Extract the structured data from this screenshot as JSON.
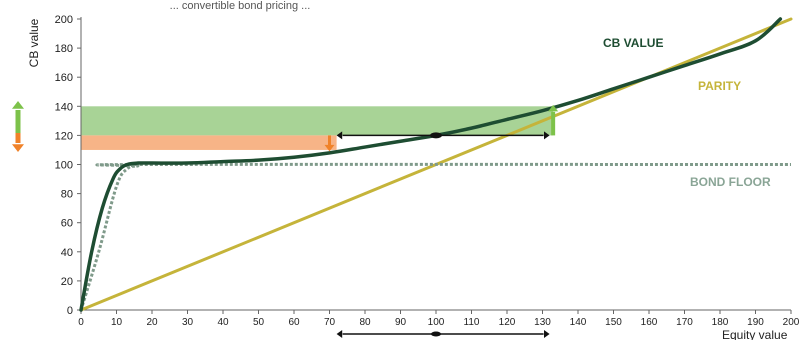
{
  "chart_data": {
    "type": "line",
    "ylabel": "CB value",
    "xlabel": "Equity value",
    "title_fragment": "... convertible bond pricing ...",
    "xlim": [
      0,
      200
    ],
    "ylim": [
      0,
      200
    ],
    "xticks": [
      0,
      10,
      20,
      30,
      40,
      50,
      60,
      70,
      80,
      90,
      100,
      110,
      120,
      130,
      140,
      150,
      160,
      170,
      180,
      190,
      200
    ],
    "yticks": [
      0,
      20,
      40,
      60,
      80,
      100,
      120,
      140,
      160,
      180,
      200
    ],
    "grid": false,
    "series": [
      {
        "name": "CB VALUE",
        "color": "#1e4d32",
        "x": [
          0,
          3,
          6,
          9,
          11,
          13,
          16,
          20,
          30,
          40,
          50,
          60,
          70,
          80,
          90,
          100,
          110,
          120,
          130,
          140,
          150,
          160,
          170,
          180,
          190,
          197
        ],
        "y": [
          0,
          40,
          70,
          90,
          97,
          100,
          101,
          101,
          101,
          102,
          103,
          105,
          108,
          112,
          116,
          120,
          125,
          131,
          137,
          144,
          152,
          160,
          168,
          176,
          185,
          200
        ]
      },
      {
        "name": "PARITY",
        "color": "#c5b43a",
        "x": [
          0,
          200
        ],
        "y": [
          0,
          200
        ]
      },
      {
        "name": "BOND FLOOR",
        "color": "#7f9a8a",
        "dashed": true,
        "x": [
          0,
          5,
          10,
          13,
          16,
          20,
          200
        ],
        "y": [
          0,
          40,
          85,
          97,
          99,
          100,
          100
        ]
      }
    ],
    "bands": [
      {
        "name": "upside",
        "color": "#a8d396",
        "x": [
          0,
          133
        ],
        "y": [
          120,
          140
        ]
      },
      {
        "name": "downside",
        "color": "#f7b487",
        "x": [
          0,
          72
        ],
        "y": [
          110,
          120
        ]
      }
    ],
    "annotations": {
      "range_arrow": {
        "x": [
          72,
          132
        ],
        "y": 120,
        "center": 100
      },
      "bottom_arrow": {
        "x": [
          72,
          132
        ],
        "center": 100
      },
      "up_arrow": {
        "x": 133,
        "y": [
          120,
          141
        ],
        "color": "#7dc24a"
      },
      "down_arrow": {
        "x": 70,
        "y": [
          120,
          109
        ],
        "color": "#f08229"
      },
      "legend_up_arrow_color": "#7dc24a",
      "legend_down_arrow_color": "#f08229"
    },
    "labels": {
      "cb": "CB VALUE",
      "parity": "PARITY",
      "floor": "BOND FLOOR"
    }
  }
}
